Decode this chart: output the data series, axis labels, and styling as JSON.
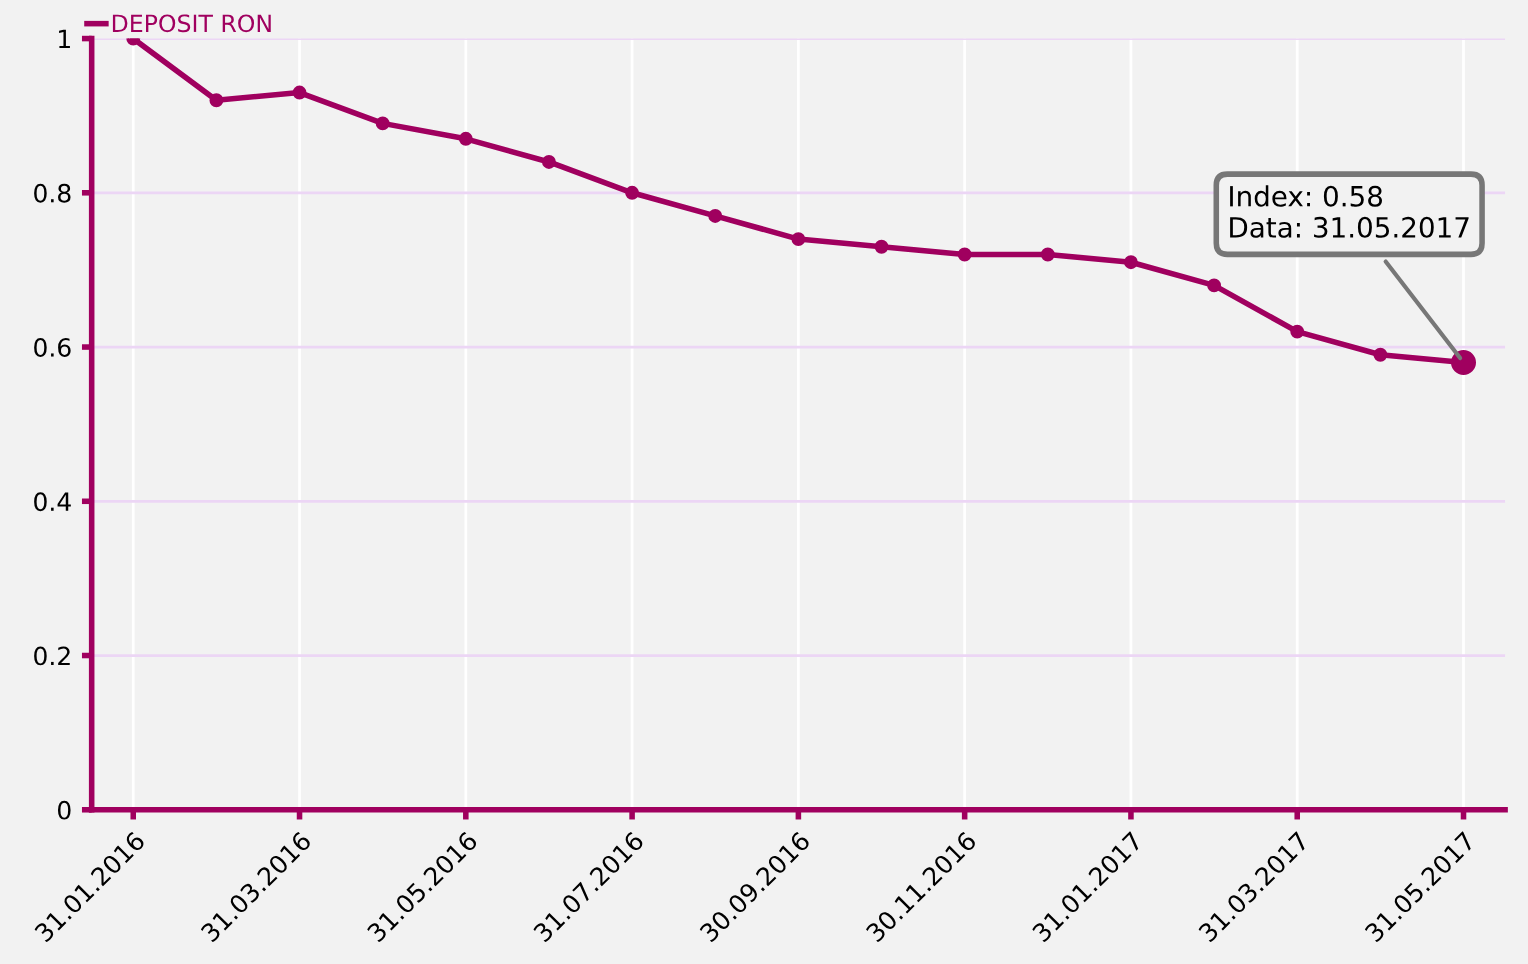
{
  "chart_data": {
    "type": "line",
    "categories": [
      "31.01.2016",
      null,
      "31.03.2016",
      null,
      "31.05.2016",
      null,
      "31.07.2016",
      null,
      "30.09.2016",
      null,
      "30.11.2016",
      null,
      "31.01.2017",
      null,
      "31.03.2017",
      null,
      "31.05.2017"
    ],
    "series": [
      {
        "name": "DEPOSIT RON",
        "color": "#a0005f",
        "values": [
          1.0,
          0.92,
          0.93,
          0.89,
          0.87,
          0.84,
          0.8,
          0.77,
          0.74,
          0.73,
          0.72,
          0.72,
          0.71,
          0.68,
          0.62,
          0.59,
          0.58
        ]
      }
    ],
    "ylim": [
      0,
      1
    ],
    "yticks": [
      0,
      0.2,
      0.4,
      0.6,
      0.8,
      1
    ],
    "grid": true,
    "legend": "top left",
    "marker": "circle",
    "line_style": "solid",
    "annotations": [
      {
        "text": "Index: 0.58\nData: 31.05.2017",
        "x": "31.05.2017",
        "y": 0.58
      }
    ]
  }
}
